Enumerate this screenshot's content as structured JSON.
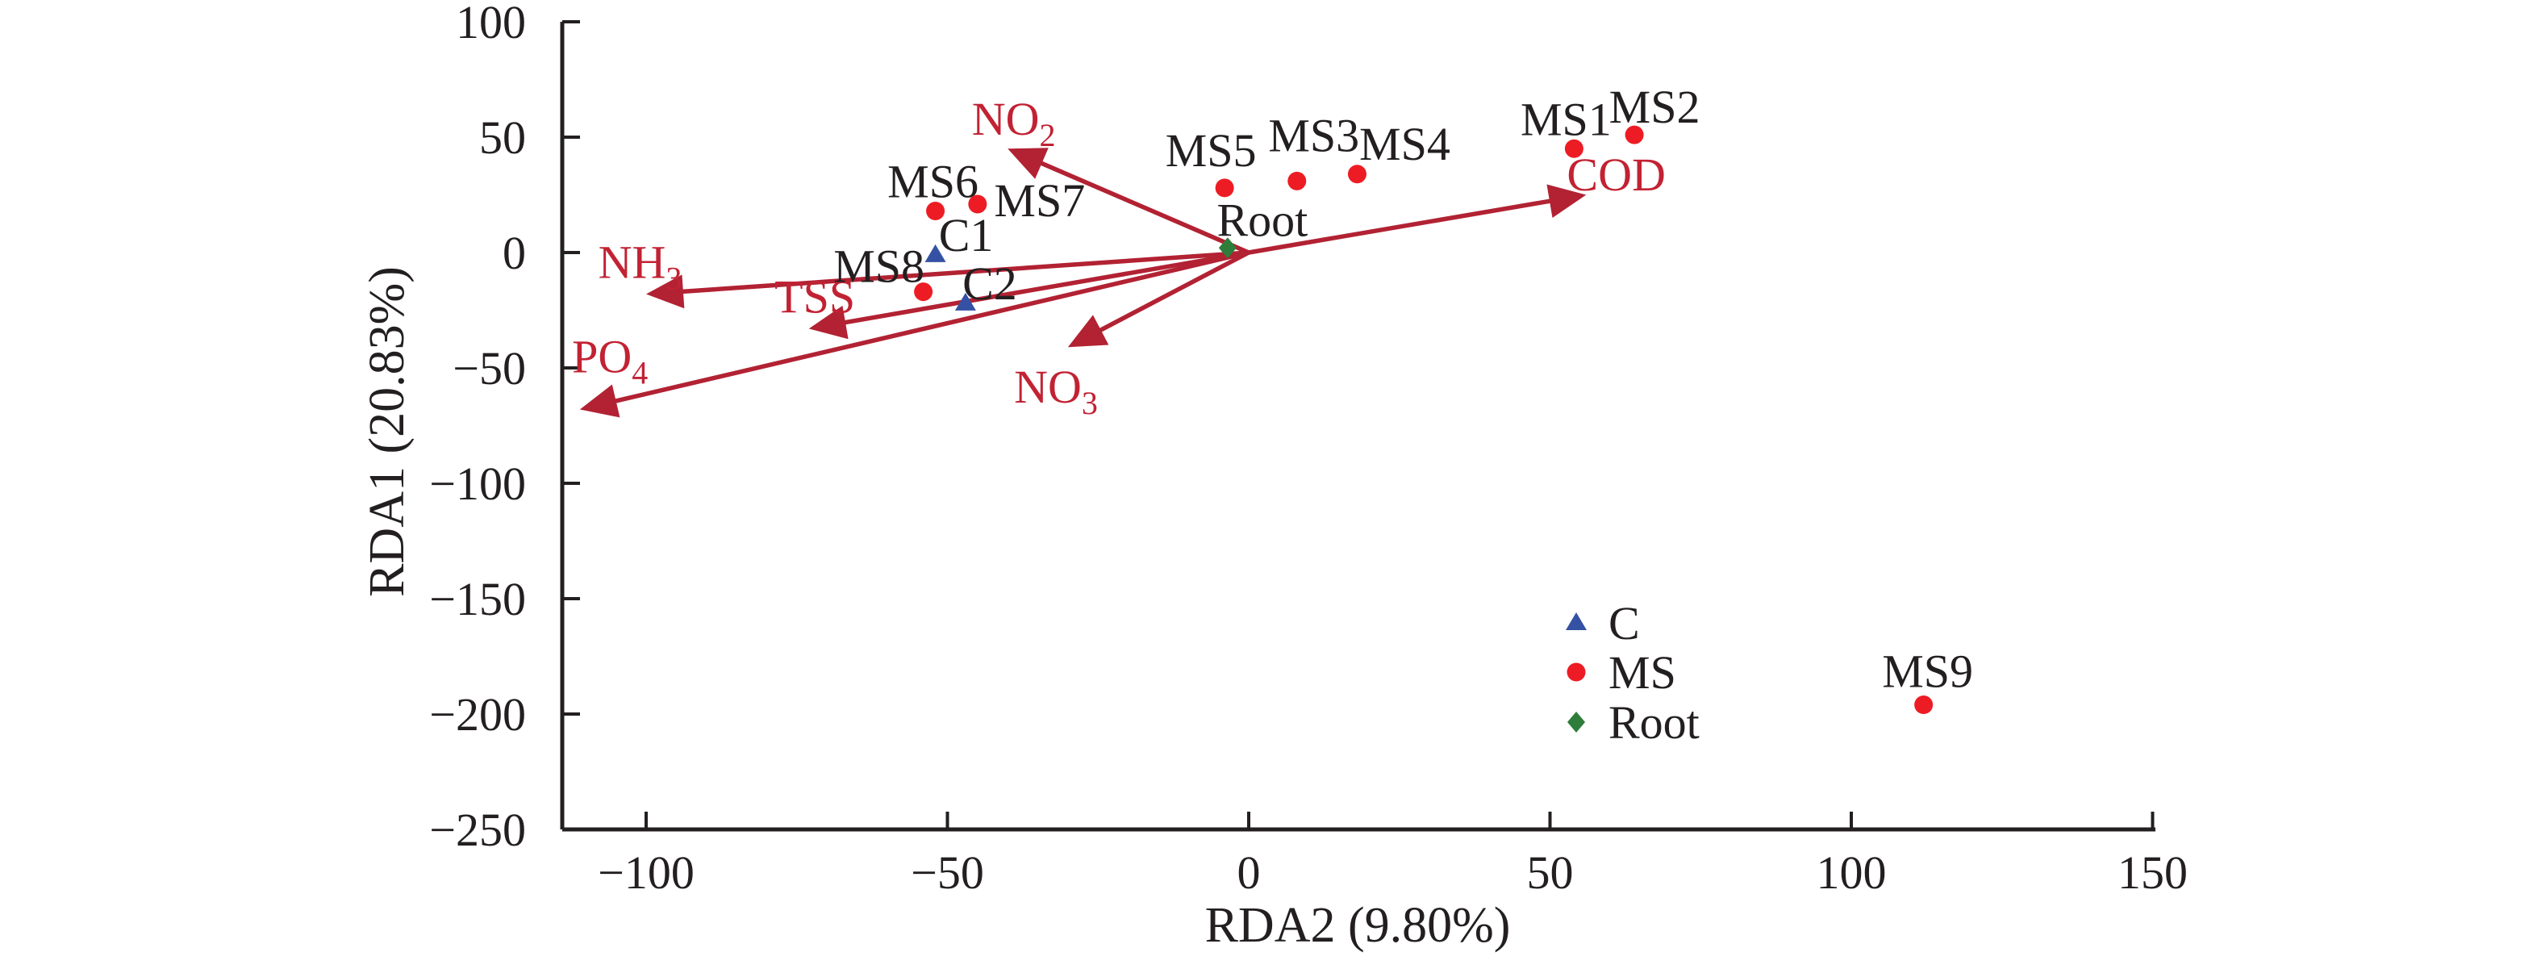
{
  "figure": {
    "background": "#ffffff",
    "axis_color": "#231f20",
    "text_color": "#231f20"
  },
  "chart_data": {
    "type": "scatter",
    "title": "",
    "xlabel": "RDA2 (9.80%)",
    "ylabel": "RDA1 (20.83%)",
    "xlim": [
      -114,
      150
    ],
    "ylim": [
      -250,
      100
    ],
    "xticks": [
      -100,
      -50,
      0,
      50,
      100,
      150
    ],
    "yticks": [
      100,
      50,
      0,
      -50,
      -100,
      -150,
      -200,
      -250
    ],
    "grid": false,
    "legend": {
      "position": "inside-lower-right",
      "entries": [
        {
          "label": "C",
          "marker": "triangle",
          "color": "#3551a3"
        },
        {
          "label": "MS",
          "marker": "circle",
          "color": "#ed1c24"
        },
        {
          "label": "Root",
          "marker": "diamond",
          "color": "#2e7d3b"
        }
      ]
    },
    "series": [
      {
        "name": "C",
        "marker": "triangle",
        "color": "#3551a3",
        "points": [
          {
            "label": "C1",
            "x": -52,
            "y": -1,
            "label_dx": 38,
            "label_dy": -25
          },
          {
            "label": "C2",
            "x": -47,
            "y": -22,
            "label_dx": 30,
            "label_dy": -25
          }
        ]
      },
      {
        "name": "MS",
        "marker": "circle",
        "color": "#ed1c24",
        "points": [
          {
            "label": "MS1",
            "x": 54,
            "y": 45,
            "label_dx": -10,
            "label_dy": -37
          },
          {
            "label": "MS2",
            "x": 64,
            "y": 51,
            "label_dx": 25,
            "label_dy": -35
          },
          {
            "label": "MS3",
            "x": 8,
            "y": 31,
            "label_dx": 21,
            "label_dy": -57
          },
          {
            "label": "MS4",
            "x": 18,
            "y": 34,
            "label_dx": 59,
            "label_dy": -38
          },
          {
            "label": "MS5",
            "x": -4,
            "y": 28,
            "label_dx": -17,
            "label_dy": -47
          },
          {
            "label": "MS6",
            "x": -52,
            "y": 18,
            "label_dx": -3,
            "label_dy": -37
          },
          {
            "label": "MS7",
            "x": -45,
            "y": 21,
            "label_dx": 77,
            "label_dy": -5
          },
          {
            "label": "MS8",
            "x": -54,
            "y": -17,
            "label_dx": -55,
            "label_dy": -32
          },
          {
            "label": "MS9",
            "x": 112,
            "y": -196,
            "label_dx": 5,
            "label_dy": -42
          }
        ]
      },
      {
        "name": "Root",
        "marker": "diamond",
        "color": "#2e7d3b",
        "points": [
          {
            "label": "Root",
            "x": -3.5,
            "y": 2,
            "label_dx": 43,
            "label_dy": -35
          }
        ]
      }
    ],
    "vectors": {
      "origin": [
        0,
        0
      ],
      "color": "#b22233",
      "label_color": "#c22233",
      "items": [
        {
          "name": "NO2-arrow",
          "text": "NO",
          "sub": "2",
          "x": -40,
          "y": 45,
          "label_x": -39,
          "label_y": 58
        },
        {
          "name": "COD-arrow",
          "text": "COD",
          "sub": "",
          "x": 56,
          "y": 25,
          "label_x": 61,
          "label_y": 34
        },
        {
          "name": "NH3-arrow",
          "text": "NH",
          "sub": "3",
          "x": -100,
          "y": -18,
          "label_x": -101,
          "label_y": -4
        },
        {
          "name": "TSS-arrow",
          "text": "TSS",
          "sub": "",
          "x": -73,
          "y": -33,
          "label_x": -72,
          "label_y": -19
        },
        {
          "name": "NO3-arrow",
          "text": "NO",
          "sub": "3",
          "x": -30,
          "y": -41,
          "label_x": -32,
          "label_y": -58
        },
        {
          "name": "PO4-arrow",
          "text": "PO",
          "sub": "4",
          "x": -111,
          "y": -68,
          "label_x": -106,
          "label_y": -45
        }
      ]
    }
  }
}
